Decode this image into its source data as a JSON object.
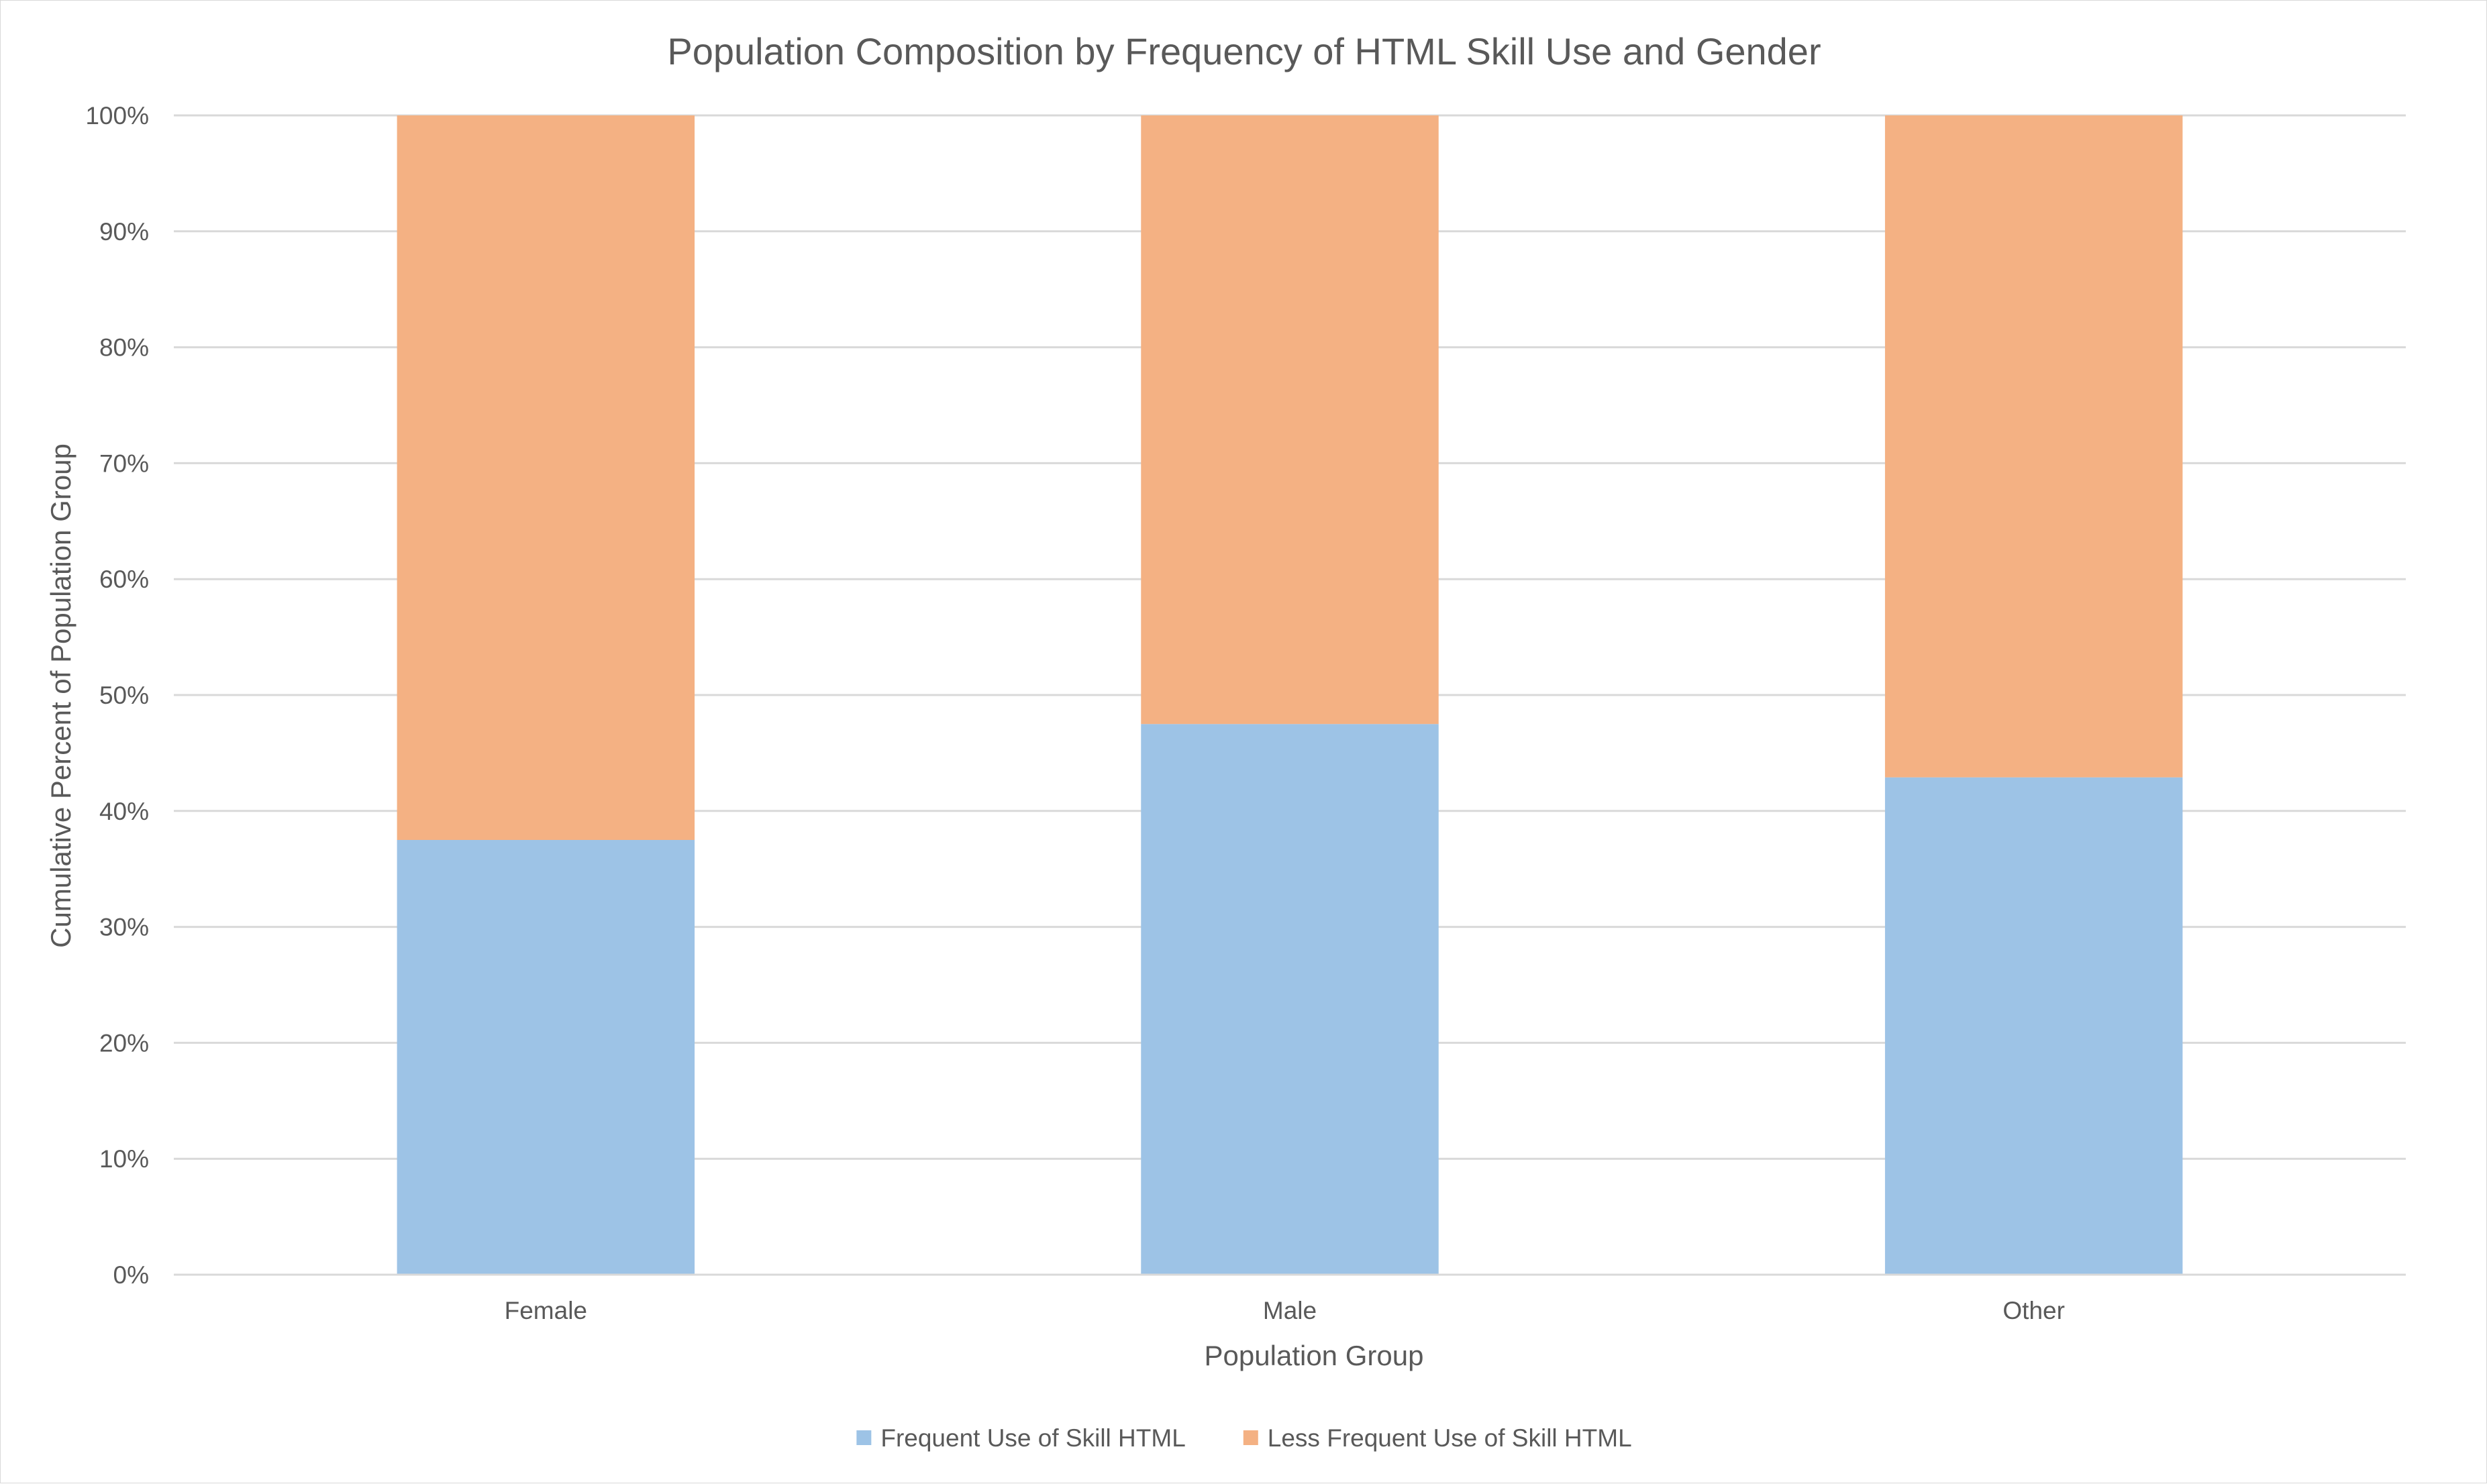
{
  "chart_data": {
    "type": "bar",
    "stacked": true,
    "title": "Population Composition by Frequency of HTML Skill Use and Gender",
    "xlabel": "Population Group",
    "ylabel": "Cumulative Percent of Population Group",
    "categories": [
      "Female",
      "Male",
      "Other"
    ],
    "series": [
      {
        "name": "Frequent Use of Skill HTML",
        "color": "#9dc3e6",
        "values": [
          37.5,
          47.5,
          42.9
        ]
      },
      {
        "name": "Less Frequent Use of Skill HTML",
        "color": "#f4b183",
        "values": [
          62.5,
          52.5,
          57.1
        ]
      }
    ],
    "ylim": [
      0,
      100
    ],
    "yticks": [
      "0%",
      "10%",
      "20%",
      "30%",
      "40%",
      "50%",
      "60%",
      "70%",
      "80%",
      "90%",
      "100%"
    ],
    "grid": true,
    "legend_position": "bottom"
  }
}
